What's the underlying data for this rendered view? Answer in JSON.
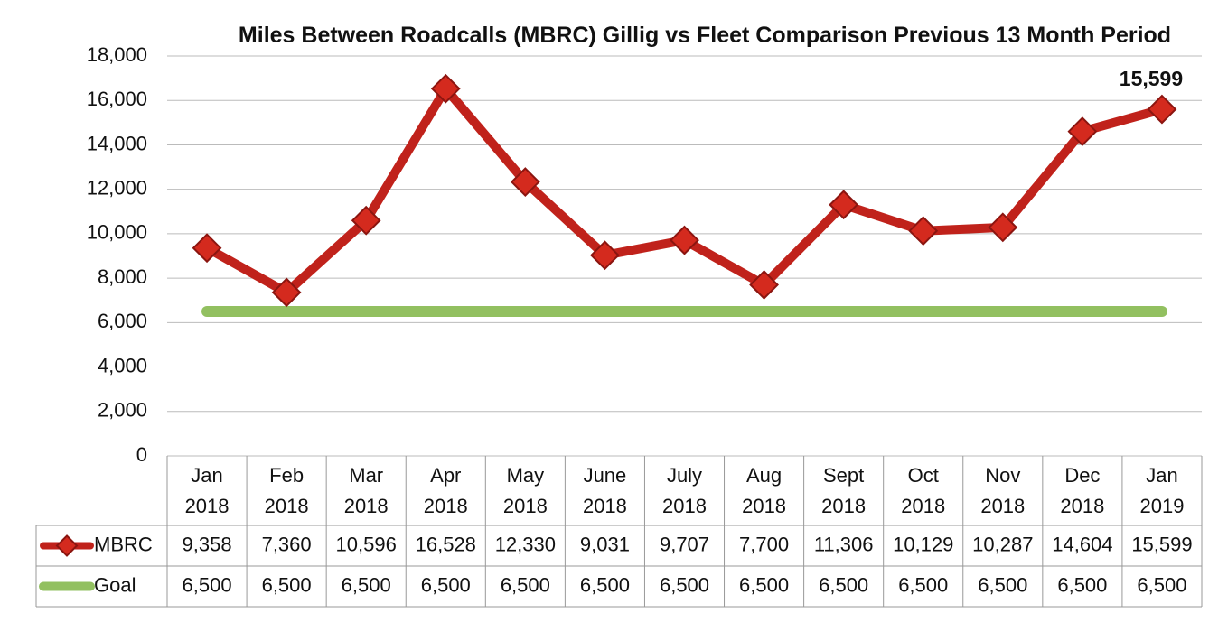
{
  "chart_data": {
    "type": "line",
    "title": "Miles Between Roadcalls (MBRC) Gillig vs Fleet Comparison Previous 13 Month Period",
    "categories": [
      "Jan 2018",
      "Feb 2018",
      "Mar 2018",
      "Apr 2018",
      "May 2018",
      "June 2018",
      "July 2018",
      "Aug 2018",
      "Sept 2018",
      "Oct 2018",
      "Nov 2018",
      "Dec 2018",
      "Jan 2019"
    ],
    "series": [
      {
        "name": "MBRC",
        "color": "#c0221b",
        "values": [
          9358,
          7360,
          10596,
          16528,
          12330,
          9031,
          9707,
          7700,
          11306,
          10129,
          10287,
          14604,
          15599
        ],
        "value_labels": [
          "9,358",
          "7,360",
          "10,596",
          "16,528",
          "12,330",
          "9,031",
          "9,707",
          "7,700",
          "11,306",
          "10,129",
          "10,287",
          "14,604",
          "15,599"
        ]
      },
      {
        "name": "Goal",
        "color": "#92c060",
        "values": [
          6500,
          6500,
          6500,
          6500,
          6500,
          6500,
          6500,
          6500,
          6500,
          6500,
          6500,
          6500,
          6500
        ],
        "value_labels": [
          "6,500",
          "6,500",
          "6,500",
          "6,500",
          "6,500",
          "6,500",
          "6,500",
          "6,500",
          "6,500",
          "6,500",
          "6,500",
          "6,500",
          "6,500"
        ]
      }
    ],
    "ylim": [
      0,
      18000
    ],
    "yticks": [
      0,
      {
        "value": 2000,
        "label": "2,000"
      },
      {
        "value": 4000,
        "label": "4,000"
      },
      {
        "value": 6000,
        "label": "6,000"
      },
      {
        "value": 8000,
        "label": "8,000"
      },
      {
        "value": 10000,
        "label": "10,000"
      },
      {
        "value": 12000,
        "label": "12,000"
      },
      {
        "value": 14000,
        "label": "14,000"
      },
      {
        "value": 16000,
        "label": "16,000"
      },
      {
        "value": 18000,
        "label": "18,000"
      }
    ],
    "grid": true
  }
}
